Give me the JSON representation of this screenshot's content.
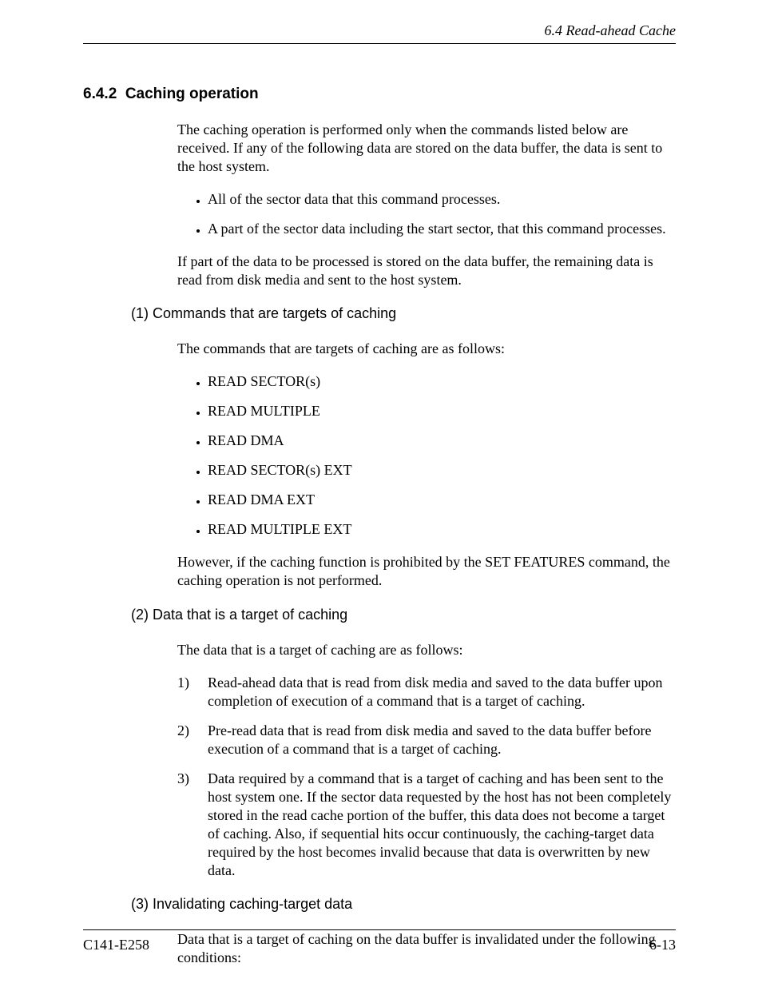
{
  "header": {
    "text": "6.4  Read-ahead Cache"
  },
  "section": {
    "number": "6.4.2",
    "title": "Caching operation",
    "intro1": "The caching operation is performed only when the commands listed below are received.  If any of the following data are stored on the data buffer, the data is sent to the host system.",
    "bullets1": [
      "All of the sector data that this command processes.",
      "A part of the sector data including the start sector, that this command processes."
    ],
    "intro2": "If part of the data to be processed is stored on the data buffer, the remaining data is read from disk media and sent to the host system."
  },
  "sub1": {
    "label": "(1)  Commands that are targets of caching",
    "lead": "The commands that are targets of caching are as follows:",
    "items": [
      "READ SECTOR(s)",
      "READ MULTIPLE",
      "READ DMA",
      "READ SECTOR(s) EXT",
      "READ DMA EXT",
      "READ MULTIPLE EXT"
    ],
    "tail": "However, if the caching function is prohibited by the SET FEATURES command, the caching operation is not performed."
  },
  "sub2": {
    "label": "(2)  Data that is a target of caching",
    "lead": "The data that is a target of caching are as follows:",
    "items": [
      {
        "n": "1)",
        "t": "Read-ahead data that is read from disk media and saved to the data buffer upon completion of execution of a command that is a target of caching."
      },
      {
        "n": "2)",
        "t": "Pre-read data that is read from disk media and saved to the data buffer before execution of a command that is a target of caching."
      },
      {
        "n": "3)",
        "t": "Data required by a command that is a target of caching and has been sent to the host system one. If the sector data requested by the host has not been completely stored in the read cache portion of the buffer, this data does not become a target of caching. Also, if sequential hits occur continuously, the caching-target data required by the host becomes invalid because that data is overwritten by new data."
      }
    ]
  },
  "sub3": {
    "label": "(3)  Invalidating caching-target data",
    "lead": "Data that is a target of caching on the data buffer is invalidated under the following conditions:"
  },
  "footer": {
    "left": "C141-E258",
    "right": "6-13"
  }
}
